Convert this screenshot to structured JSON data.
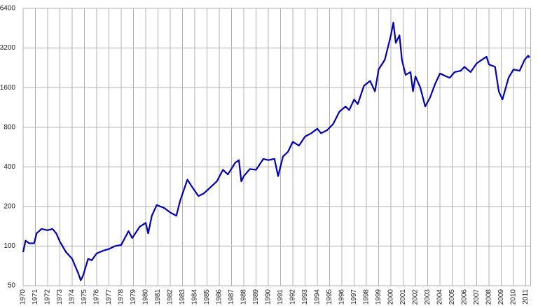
{
  "chart_data": {
    "type": "line",
    "log_scale_y": true,
    "grid": true,
    "x": [
      1970.0,
      1970.2,
      1970.5,
      1970.9,
      1971.1,
      1971.5,
      1972.0,
      1972.4,
      1972.7,
      1973.0,
      1973.5,
      1974.0,
      1974.5,
      1974.7,
      1974.9,
      1975.3,
      1975.6,
      1976.0,
      1976.5,
      1977.0,
      1977.5,
      1978.0,
      1978.6,
      1978.9,
      1979.5,
      1980.0,
      1980.2,
      1980.5,
      1980.9,
      1981.5,
      1982.0,
      1982.5,
      1982.8,
      1983.4,
      1983.8,
      1984.3,
      1984.7,
      1985.2,
      1985.8,
      1986.3,
      1986.7,
      1987.3,
      1987.6,
      1987.8,
      1988.0,
      1988.5,
      1989.0,
      1989.6,
      1990.0,
      1990.5,
      1990.8,
      1991.2,
      1991.6,
      1992.0,
      1992.5,
      1993.0,
      1993.5,
      1994.0,
      1994.3,
      1994.8,
      1995.3,
      1995.8,
      1996.3,
      1996.6,
      1997.0,
      1997.3,
      1997.8,
      1998.3,
      1998.7,
      1999.0,
      1999.5,
      2000.0,
      2000.2,
      2000.4,
      2000.7,
      2000.9,
      2001.2,
      2001.6,
      2001.8,
      2002.0,
      2002.4,
      2002.8,
      2003.2,
      2003.6,
      2004.0,
      2004.5,
      2004.8,
      2005.2,
      2005.7,
      2006.0,
      2006.5,
      2007.0,
      2007.8,
      2008.0,
      2008.5,
      2008.8,
      2009.1,
      2009.6,
      2010.0,
      2010.5,
      2010.9,
      2011.2,
      2011.3
    ],
    "series": [
      {
        "color": "#0000b4",
        "values": [
          90,
          110,
          105,
          105,
          125,
          135,
          132,
          135,
          125,
          108,
          90,
          80,
          62,
          55,
          60,
          80,
          78,
          88,
          92,
          95,
          100,
          102,
          130,
          115,
          140,
          150,
          125,
          170,
          205,
          195,
          180,
          170,
          220,
          320,
          280,
          240,
          250,
          275,
          310,
          380,
          350,
          430,
          450,
          310,
          340,
          385,
          380,
          460,
          450,
          460,
          340,
          480,
          520,
          620,
          580,
          680,
          720,
          780,
          720,
          760,
          850,
          1050,
          1150,
          1080,
          1300,
          1200,
          1650,
          1800,
          1500,
          2200,
          2600,
          4000,
          5000,
          3500,
          4000,
          2600,
          2000,
          2100,
          1500,
          1950,
          1600,
          1150,
          1350,
          1700,
          2050,
          1950,
          1900,
          2100,
          2150,
          2300,
          2100,
          2450,
          2750,
          2400,
          2300,
          1500,
          1300,
          1900,
          2200,
          2150,
          2600,
          2800,
          2700
        ]
      }
    ],
    "xlim": [
      1970,
      2011.4
    ],
    "xticks": [
      1970,
      1971,
      1972,
      1973,
      1974,
      1975,
      1976,
      1977,
      1978,
      1979,
      1980,
      1981,
      1982,
      1983,
      1984,
      1985,
      1986,
      1987,
      1988,
      1989,
      1990,
      1991,
      1992,
      1993,
      1994,
      1995,
      1996,
      1997,
      1998,
      1999,
      2000,
      2001,
      2002,
      2003,
      2004,
      2005,
      2006,
      2007,
      2008,
      2009,
      2010,
      2011
    ],
    "ylim": [
      50,
      6400
    ],
    "yticks": [
      50,
      100,
      200,
      400,
      800,
      1600,
      3200,
      6400
    ]
  }
}
